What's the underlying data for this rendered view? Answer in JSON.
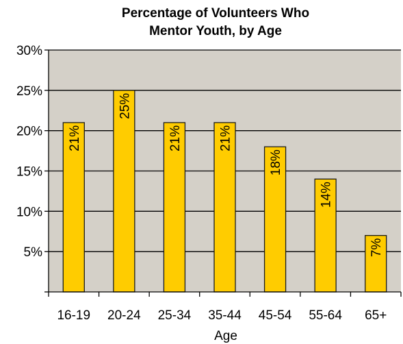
{
  "chart_data": {
    "type": "bar",
    "title_lines": [
      "Percentage of Volunteers Who",
      "Mentor Youth, by Age"
    ],
    "xlabel": "Age",
    "ylabel": "",
    "categories": [
      "16-19",
      "20-24",
      "25-34",
      "35-44",
      "45-54",
      "55-64",
      "65+"
    ],
    "values": [
      21,
      25,
      21,
      21,
      18,
      14,
      7
    ],
    "data_labels": [
      "21%",
      "25%",
      "21%",
      "21%",
      "18%",
      "14%",
      "7%"
    ],
    "ylim": [
      0,
      30
    ],
    "yticks": [
      5,
      10,
      15,
      20,
      25,
      30
    ],
    "ytick_labels": [
      "5%",
      "10%",
      "15%",
      "20%",
      "25%",
      "30%"
    ],
    "grid": true,
    "legend": "none",
    "colors": {
      "bar": "#FFCC00",
      "bar_edge": "#1a1a1a",
      "plot_background": "#D4D0C8",
      "gridline": "#000000"
    }
  }
}
